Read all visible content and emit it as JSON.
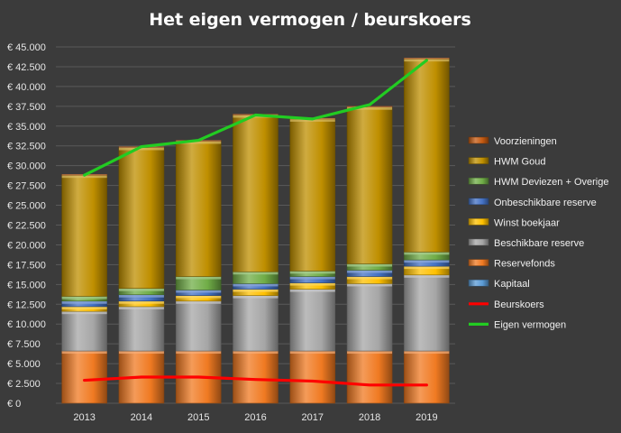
{
  "chart_data": {
    "type": "bar",
    "title": "Het eigen vermogen  / beurskoers",
    "categories": [
      "2013",
      "2014",
      "2015",
      "2016",
      "2017",
      "2018",
      "2019"
    ],
    "y_ticks": [
      "€ 0",
      "€ 2.500",
      "€ 5.000",
      "€ 7.500",
      "€ 10.000",
      "€ 12.500",
      "€ 15.000",
      "€ 17.500",
      "€ 20.000",
      "€ 22.500",
      "€ 25.000",
      "€ 27.500",
      "€ 30.000",
      "€ 32.500",
      "€ 35.000",
      "€ 37.500",
      "€ 40.000",
      "€ 42.500",
      "€ 45.000"
    ],
    "ylim": [
      0,
      45000
    ],
    "stacked": true,
    "grid": true,
    "legend_position": "right",
    "stack_series": [
      {
        "name": "Reservefonds",
        "color": "#f07a22",
        "values": [
          6600,
          6600,
          6600,
          6600,
          6600,
          6600,
          6600
        ]
      },
      {
        "name": "Beschikbare reserve",
        "color": "#a6a6a6",
        "values": [
          5000,
          5600,
          6300,
          7000,
          7800,
          8500,
          9600
        ]
      },
      {
        "name": "Kapitaal",
        "color": "#5b9bd5",
        "values": [
          0,
          0,
          0,
          0,
          0,
          0,
          0
        ]
      },
      {
        "name": "Winst boekjaar",
        "color": "#ffc000",
        "values": [
          600,
          700,
          700,
          800,
          800,
          900,
          1100
        ]
      },
      {
        "name": "Onbeschikbare reserve",
        "color": "#4472c4",
        "values": [
          700,
          800,
          700,
          700,
          800,
          800,
          800
        ]
      },
      {
        "name": "HWM Deviezen + Overige",
        "color": "#70ad47",
        "values": [
          600,
          800,
          1700,
          1500,
          700,
          800,
          1000
        ]
      },
      {
        "name": "HWM Goud",
        "color": "#bf8f00",
        "values": [
          15300,
          17800,
          17100,
          19800,
          19200,
          19800,
          24400
        ]
      },
      {
        "name": "Voorzieningen",
        "color": "#c55a11",
        "values": [
          100,
          100,
          100,
          100,
          100,
          100,
          100
        ]
      }
    ],
    "line_series": [
      {
        "name": "Beurskoers",
        "color": "#ff0000",
        "values": [
          2900,
          3300,
          3300,
          3000,
          2800,
          2300,
          2300
        ]
      },
      {
        "name": "Eigen vermogen",
        "color": "#22cc22",
        "values": [
          28800,
          32400,
          33200,
          36400,
          35900,
          37700,
          43300
        ]
      }
    ],
    "legend": [
      {
        "name": "Voorzieningen",
        "color": "#c55a11",
        "kind": "bar"
      },
      {
        "name": "HWM Goud",
        "color": "#bf8f00",
        "kind": "bar"
      },
      {
        "name": "HWM Deviezen + Overige",
        "color": "#70ad47",
        "kind": "bar"
      },
      {
        "name": "Onbeschikbare reserve",
        "color": "#4472c4",
        "kind": "bar"
      },
      {
        "name": "Winst boekjaar",
        "color": "#ffc000",
        "kind": "bar"
      },
      {
        "name": "Beschikbare reserve",
        "color": "#a6a6a6",
        "kind": "bar"
      },
      {
        "name": "Reservefonds",
        "color": "#f07a22",
        "kind": "bar"
      },
      {
        "name": "Kapitaal",
        "color": "#5b9bd5",
        "kind": "bar"
      },
      {
        "name": "Beurskoers",
        "color": "#ff0000",
        "kind": "line"
      },
      {
        "name": "Eigen vermogen",
        "color": "#22cc22",
        "kind": "line"
      }
    ]
  }
}
